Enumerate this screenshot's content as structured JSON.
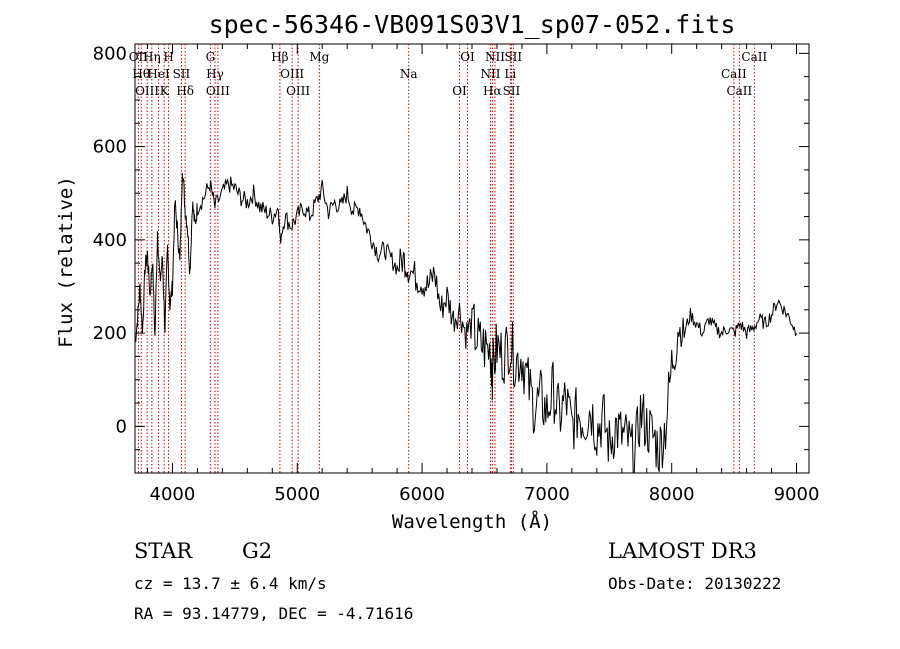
{
  "chart_data": {
    "type": "line",
    "title": "spec-56346-VB091S03V1_sp07-052.fits",
    "xlabel": "Wavelength (Å)",
    "ylabel": "Flux (relative)",
    "xlim": [
      3700,
      9100
    ],
    "ylim": [
      -100,
      820
    ],
    "xticks": [
      4000,
      5000,
      6000,
      7000,
      8000,
      9000
    ],
    "yticks": [
      0,
      200,
      400,
      600,
      800
    ],
    "grid": false,
    "series": [
      {
        "name": "flux",
        "x": [
          3700,
          3720,
          3740,
          3760,
          3780,
          3800,
          3820,
          3840,
          3860,
          3880,
          3900,
          3920,
          3940,
          3960,
          3980,
          4000,
          4020,
          4040,
          4060,
          4080,
          4100,
          4120,
          4140,
          4160,
          4180,
          4200,
          4250,
          4300,
          4340,
          4400,
          4450,
          4500,
          4550,
          4600,
          4650,
          4700,
          4750,
          4800,
          4850,
          4861,
          4900,
          4950,
          5000,
          5050,
          5100,
          5150,
          5200,
          5250,
          5300,
          5350,
          5400,
          5450,
          5500,
          5550,
          5600,
          5650,
          5700,
          5750,
          5800,
          5850,
          5890,
          5950,
          6000,
          6050,
          6100,
          6150,
          6200,
          6250,
          6300,
          6350,
          6400,
          6450,
          6500,
          6550,
          6563,
          6600,
          6650,
          6700,
          6750,
          6800,
          6850,
          6900,
          6950,
          7000,
          7050,
          7100,
          7150,
          7200,
          7250,
          7300,
          7350,
          7400,
          7450,
          7500,
          7550,
          7600,
          7650,
          7700,
          7750,
          7800,
          7850,
          7900,
          7950,
          8000,
          8050,
          8100,
          8150,
          8200,
          8250,
          8300,
          8350,
          8400,
          8450,
          8500,
          8550,
          8600,
          8650,
          8700,
          8750,
          8800,
          8850,
          8900,
          8950,
          9000
        ],
        "values": [
          180,
          230,
          300,
          200,
          340,
          370,
          280,
          360,
          190,
          420,
          310,
          360,
          210,
          380,
          260,
          300,
          480,
          420,
          350,
          560,
          470,
          430,
          330,
          480,
          430,
          470,
          490,
          520,
          470,
          500,
          520,
          510,
          490,
          480,
          500,
          470,
          460,
          450,
          470,
          400,
          450,
          430,
          450,
          470,
          450,
          480,
          510,
          460,
          480,
          470,
          500,
          460,
          470,
          430,
          400,
          370,
          380,
          360,
          340,
          360,
          340,
          320,
          310,
          300,
          330,
          250,
          280,
          230,
          250,
          200,
          220,
          180,
          170,
          160,
          120,
          170,
          150,
          180,
          140,
          150,
          90,
          40,
          60,
          30,
          80,
          20,
          60,
          0,
          30,
          10,
          40,
          -10,
          20,
          -40,
          0,
          -20,
          -30,
          -70,
          30,
          0,
          -20,
          -50,
          0,
          130,
          210,
          200,
          240,
          220,
          200,
          230,
          210,
          200,
          210,
          200,
          220,
          200,
          210,
          230,
          220,
          240,
          270,
          250,
          230,
          200
        ]
      }
    ],
    "line_markers": [
      {
        "wave": 3727,
        "label": "OII"
      },
      {
        "wave": 3750,
        "label": "Hθ"
      },
      {
        "wave": 3797,
        "label": "OIII"
      },
      {
        "wave": 3835,
        "label": "Hη"
      },
      {
        "wave": 3889,
        "label": "HeI"
      },
      {
        "wave": 3934,
        "label": "K"
      },
      {
        "wave": 3969,
        "label": "H"
      },
      {
        "wave": 4072,
        "label": "SII"
      },
      {
        "wave": 4102,
        "label": "Hδ"
      },
      {
        "wave": 4304,
        "label": "G"
      },
      {
        "wave": 4341,
        "label": "Hγ"
      },
      {
        "wave": 4364,
        "label": "OIII"
      },
      {
        "wave": 4861,
        "label": "Hβ"
      },
      {
        "wave": 4959,
        "label": "OIII"
      },
      {
        "wave": 5007,
        "label": "OIII"
      },
      {
        "wave": 5177,
        "label": "Mg"
      },
      {
        "wave": 5893,
        "label": "Na"
      },
      {
        "wave": 6300,
        "label": "OI"
      },
      {
        "wave": 6364,
        "label": "OI"
      },
      {
        "wave": 6548,
        "label": "NII"
      },
      {
        "wave": 6563,
        "label": "Hα"
      },
      {
        "wave": 6584,
        "label": "NII"
      },
      {
        "wave": 6707,
        "label": "Li"
      },
      {
        "wave": 6716,
        "label": "SII"
      },
      {
        "wave": 6731,
        "label": "SII"
      },
      {
        "wave": 8498,
        "label": "CaII"
      },
      {
        "wave": 8542,
        "label": "CaII"
      },
      {
        "wave": 8662,
        "label": "CaII"
      }
    ]
  },
  "info": {
    "object_class": "STAR",
    "subclass": "G2",
    "survey": "LAMOST DR3",
    "cz": "cz = 13.7 ± 6.4 km/s",
    "obs_date": "Obs-Date: 20130222",
    "radec": "RA =  93.14779, DEC =  -4.71616"
  },
  "colors": {
    "spectrum": "#000000",
    "marker_lines": "#cc0000",
    "axes": "#000000"
  }
}
